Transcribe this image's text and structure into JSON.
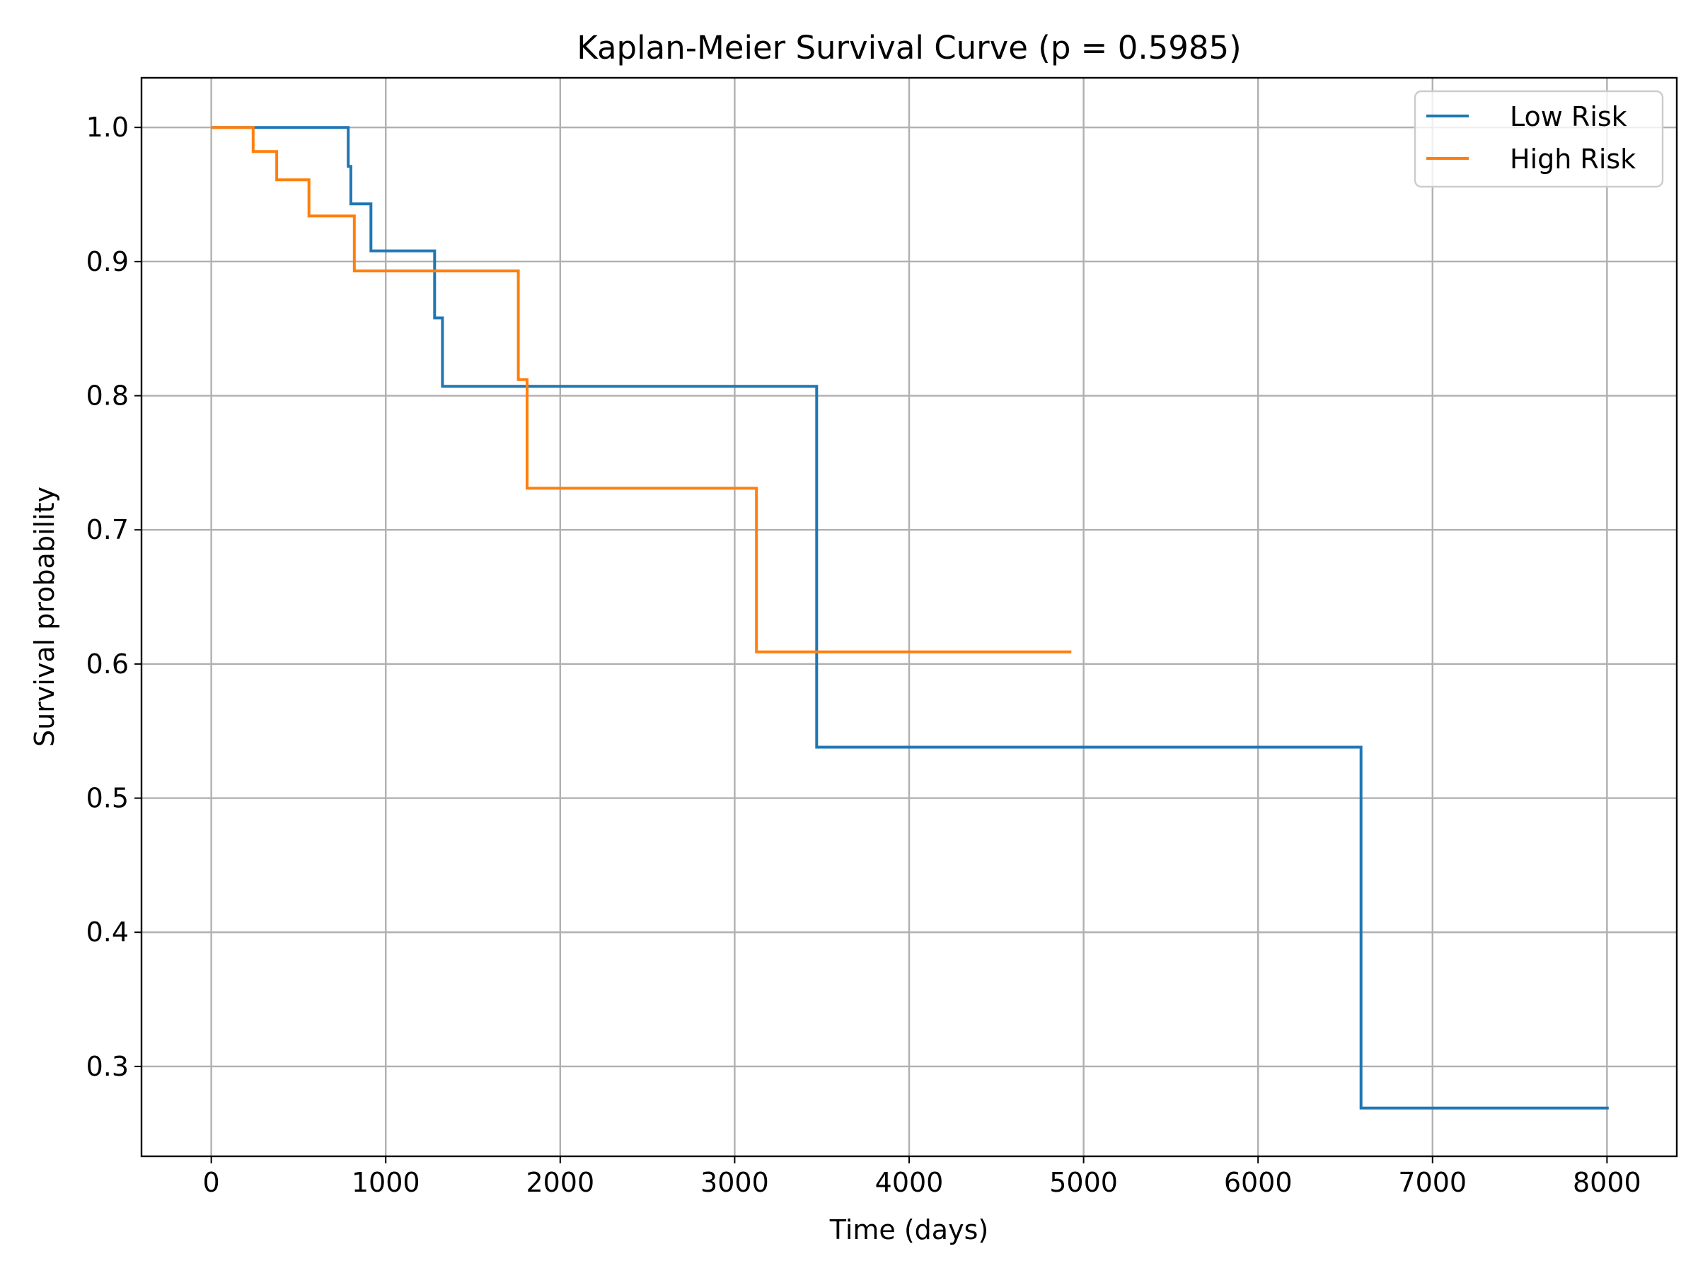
{
  "chart_data": {
    "type": "line",
    "step": "post",
    "title": "Kaplan-Meier Survival Curve (p = 0.5985)",
    "xlabel": "Time (days)",
    "ylabel": "Survival probability",
    "xlim": [
      -400,
      8400
    ],
    "ylim": [
      0.233,
      1.037
    ],
    "xticks": [
      0,
      1000,
      2000,
      3000,
      4000,
      5000,
      6000,
      7000,
      8000
    ],
    "yticks": [
      0.3,
      0.4,
      0.5,
      0.6,
      0.7,
      0.8,
      0.9,
      1.0
    ],
    "xtick_labels": [
      "0",
      "1000",
      "2000",
      "3000",
      "4000",
      "5000",
      "6000",
      "7000",
      "8000"
    ],
    "ytick_labels": [
      "0.3",
      "0.4",
      "0.5",
      "0.6",
      "0.7",
      "0.8",
      "0.9",
      "1.0"
    ],
    "grid": true,
    "legend_position": "top-right",
    "series": [
      {
        "name": "Low Risk",
        "color": "#1f77b4",
        "x": [
          0,
          785,
          800,
          915,
          1280,
          1325,
          3470,
          6590,
          8010
        ],
        "y": [
          1.0,
          0.971,
          0.943,
          0.908,
          0.858,
          0.807,
          0.538,
          0.269,
          0.269
        ]
      },
      {
        "name": "High Risk",
        "color": "#ff7f0e",
        "x": [
          0,
          240,
          375,
          560,
          820,
          1760,
          1810,
          3125,
          4930
        ],
        "y": [
          1.0,
          0.982,
          0.961,
          0.934,
          0.893,
          0.812,
          0.731,
          0.609,
          0.609
        ]
      }
    ]
  }
}
